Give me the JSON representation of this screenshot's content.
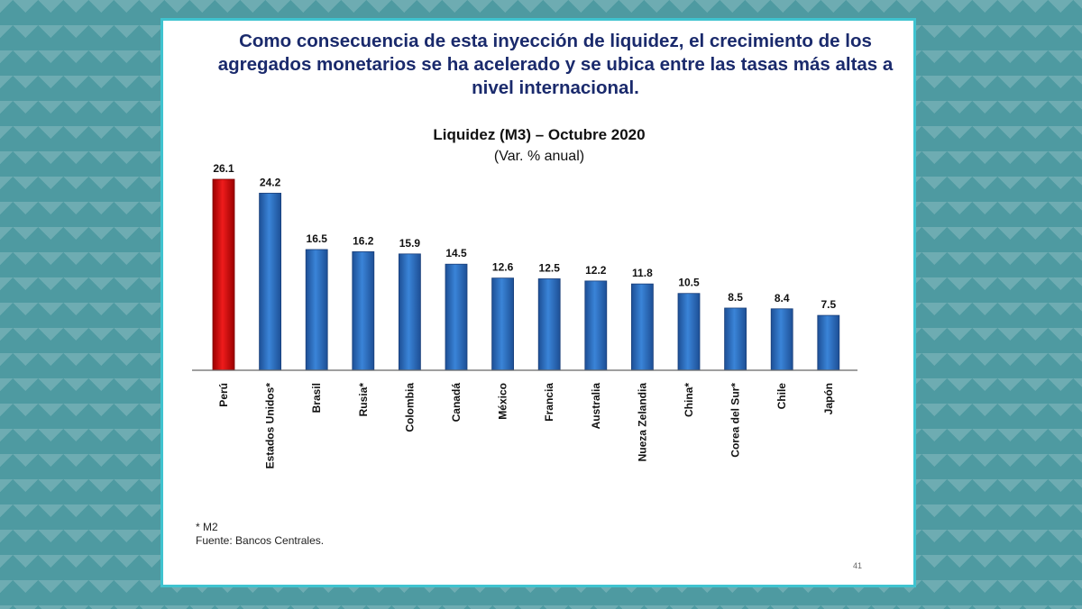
{
  "slide": {
    "headline": "Como consecuencia de esta inyección de liquidez, el crecimiento de los agregados monetarios se ha acelerado y se ubica entre las tasas más altas a nivel internacional.",
    "footnote_star": "* M2",
    "source": "Fuente: Bancos Centrales.",
    "page_number": "41"
  },
  "colors": {
    "highlight": "#d40000",
    "bar": "#2e6fc4",
    "headline": "#1a2a6c",
    "frame": "#3fc3cf"
  },
  "chart_data": {
    "type": "bar",
    "title": "Liquidez (M3) – Octubre 2020",
    "subtitle": "(Var. % anual)",
    "xlabel": "",
    "ylabel": "",
    "ylim": [
      0,
      26.1
    ],
    "categories": [
      "Perú",
      "Estados Unidos*",
      "Brasil",
      "Rusia*",
      "Colombia",
      "Canadá",
      "México",
      "Francia",
      "Australia",
      "Nueza Zelandia",
      "China*",
      "Corea del Sur*",
      "Chile",
      "Japón"
    ],
    "values": [
      26.1,
      24.2,
      16.5,
      16.2,
      15.9,
      14.5,
      12.6,
      12.5,
      12.2,
      11.8,
      10.5,
      8.5,
      8.4,
      7.5
    ],
    "labels": [
      "26.1",
      "24.2",
      "16.5",
      "16.2",
      "15.9",
      "14.5",
      "12.6",
      "12.5",
      "12.2",
      "11.8",
      "10.5",
      "8.5",
      "8.4",
      "7.5"
    ],
    "highlight_index": 0,
    "grid": false
  }
}
